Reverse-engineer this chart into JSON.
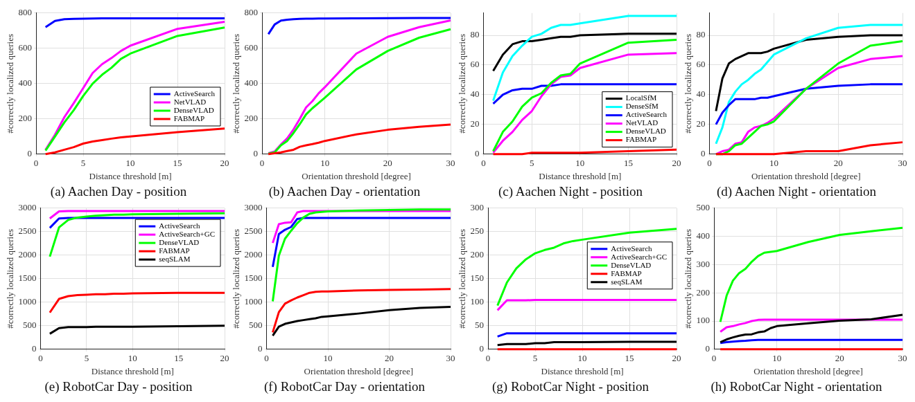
{
  "chart_data": [
    {
      "type": "line",
      "title": "(a) Aachen Day - position",
      "xlabel": "Distance threshold [m]",
      "ylabel": "#correctly localized queries",
      "x": [
        1,
        2,
        3,
        4,
        5,
        6,
        7,
        8,
        9,
        10,
        15,
        20
      ],
      "xlim": [
        0,
        20
      ],
      "xticks": [
        0,
        5,
        10,
        15,
        20
      ],
      "ylim": [
        0,
        800
      ],
      "yticks": [
        0,
        200,
        400,
        600,
        800
      ],
      "grid": true,
      "legend": "bottom right",
      "series": [
        {
          "name": "ActiveSearch",
          "color": "#0000ff",
          "values": [
            720,
            755,
            765,
            767,
            768,
            769,
            770,
            770,
            770,
            770,
            770,
            770
          ]
        },
        {
          "name": "NetVLAD",
          "color": "#ff00ff",
          "values": [
            25,
            110,
            210,
            290,
            375,
            460,
            510,
            545,
            585,
            615,
            710,
            750
          ]
        },
        {
          "name": "DenseVLAD",
          "color": "#00ff00",
          "values": [
            20,
            100,
            180,
            250,
            330,
            400,
            450,
            490,
            540,
            570,
            670,
            718
          ]
        },
        {
          "name": "FABMAP",
          "color": "#ff0000",
          "values": [
            0,
            10,
            25,
            40,
            60,
            72,
            80,
            88,
            95,
            100,
            125,
            145
          ]
        }
      ]
    },
    {
      "type": "line",
      "title": "(b) Aachen Day - orientation",
      "xlabel": "Orientation threshold [degree]",
      "ylabel": "#correctly localized queries",
      "x": [
        1,
        2,
        3,
        4,
        5,
        6,
        7,
        8,
        9,
        10,
        15,
        20,
        25,
        30
      ],
      "xlim": [
        0,
        30
      ],
      "xticks": [
        0,
        10,
        20,
        30
      ],
      "ylim": [
        0,
        800
      ],
      "yticks": [
        0,
        200,
        400,
        600,
        800
      ],
      "grid": true,
      "series": [
        {
          "color": "#0000ff",
          "values": [
            680,
            735,
            757,
            762,
            765,
            767,
            768,
            768,
            769,
            769,
            770,
            771,
            772,
            772
          ]
        },
        {
          "color": "#ff00ff",
          "values": [
            5,
            15,
            55,
            90,
            140,
            200,
            265,
            300,
            345,
            380,
            570,
            665,
            720,
            758
          ]
        },
        {
          "color": "#00ff00",
          "values": [
            3,
            10,
            50,
            75,
            120,
            170,
            225,
            260,
            290,
            320,
            480,
            585,
            660,
            708
          ]
        },
        {
          "color": "#ff0000",
          "values": [
            0,
            5,
            10,
            18,
            25,
            42,
            50,
            57,
            65,
            75,
            112,
            138,
            155,
            168
          ]
        }
      ]
    },
    {
      "type": "line",
      "title": "(c) Aachen Night - position",
      "xlabel": "Distance threshold [m]",
      "ylabel": "#correctly localized queries",
      "x": [
        1,
        2,
        3,
        4,
        5,
        6,
        7,
        8,
        9,
        10,
        15,
        20
      ],
      "xlim": [
        0,
        20
      ],
      "xticks": [
        0,
        5,
        10,
        15,
        20
      ],
      "ylim": [
        0,
        95
      ],
      "yticks": [
        0,
        20,
        40,
        60,
        80
      ],
      "grid": true,
      "legend": "bottom right",
      "series": [
        {
          "name": "LocalSfM",
          "color": "#000000",
          "values": [
            56,
            67,
            74,
            76,
            76,
            77,
            78,
            79,
            79,
            80,
            81,
            81
          ]
        },
        {
          "name": "DenseSfM",
          "color": "#00ffff",
          "values": [
            36,
            55,
            66,
            73,
            79,
            81,
            85,
            87,
            87,
            88,
            93,
            93
          ]
        },
        {
          "name": "ActiveSearch",
          "color": "#0000ff",
          "values": [
            34,
            40,
            43,
            44,
            44,
            46,
            46,
            47,
            47,
            47,
            47,
            47
          ]
        },
        {
          "name": "NetVLAD",
          "color": "#ff00ff",
          "values": [
            1,
            9,
            15,
            23,
            29,
            39,
            47,
            52,
            53,
            58,
            67,
            68
          ]
        },
        {
          "name": "DenseVLAD",
          "color": "#00ff00",
          "values": [
            2,
            15,
            22,
            32,
            38,
            41,
            48,
            53,
            54,
            61,
            75,
            77
          ]
        },
        {
          "name": "FABMAP",
          "color": "#ff0000",
          "values": [
            0,
            0,
            0,
            0,
            1,
            1,
            1,
            1,
            1,
            1,
            2,
            3
          ]
        }
      ]
    },
    {
      "type": "line",
      "title": "(d) Aachen Night - orientation",
      "xlabel": "Orientation threshold [degree]",
      "ylabel": "#correctly localized queries",
      "x": [
        1,
        2,
        3,
        4,
        5,
        6,
        7,
        8,
        9,
        10,
        15,
        20,
        25,
        30
      ],
      "xlim": [
        0,
        30
      ],
      "xticks": [
        0,
        10,
        20,
        30
      ],
      "ylim": [
        0,
        95
      ],
      "yticks": [
        0,
        20,
        40,
        60,
        80
      ],
      "grid": true,
      "series": [
        {
          "color": "#000000",
          "values": [
            29,
            51,
            61,
            64,
            66,
            68,
            68,
            68,
            69,
            71,
            77,
            79,
            80,
            80
          ]
        },
        {
          "color": "#00ffff",
          "values": [
            7,
            18,
            35,
            42,
            47,
            50,
            54,
            57,
            62,
            67,
            78,
            85,
            87,
            87
          ]
        },
        {
          "color": "#0000ff",
          "values": [
            20,
            28,
            33,
            37,
            37,
            37,
            37,
            38,
            38,
            39,
            44,
            46,
            47,
            47
          ]
        },
        {
          "color": "#ff00ff",
          "values": [
            0,
            2,
            3,
            7,
            8,
            15,
            18,
            19,
            21,
            24,
            44,
            58,
            64,
            66
          ]
        },
        {
          "color": "#00ff00",
          "values": [
            0,
            0,
            2,
            6,
            7,
            11,
            15,
            19,
            20,
            22,
            44,
            61,
            73,
            76
          ]
        },
        {
          "color": "#ff0000",
          "values": [
            0,
            0,
            0,
            0,
            0,
            0,
            0,
            0,
            0,
            0,
            2,
            2,
            6,
            8
          ]
        }
      ]
    },
    {
      "type": "line",
      "title": "(e) RobotCar Day - position",
      "xlabel": "Distance threshold [m]",
      "ylabel": "#correctly localized queries",
      "x": [
        1,
        2,
        3,
        4,
        5,
        6,
        7,
        8,
        9,
        10,
        15,
        20
      ],
      "xlim": [
        0,
        20
      ],
      "xticks": [
        0,
        5,
        10,
        15,
        20
      ],
      "ylim": [
        0,
        3000
      ],
      "yticks": [
        0,
        500,
        1000,
        1500,
        2000,
        2500,
        3000
      ],
      "grid": true,
      "legend": "top right",
      "series": [
        {
          "name": "ActiveSearch",
          "color": "#0000ff",
          "values": [
            2580,
            2780,
            2790,
            2790,
            2790,
            2790,
            2790,
            2790,
            2790,
            2790,
            2790,
            2790
          ]
        },
        {
          "name": "ActiveSearch+GC",
          "color": "#ff00ff",
          "values": [
            2780,
            2930,
            2940,
            2940,
            2940,
            2940,
            2940,
            2940,
            2940,
            2940,
            2940,
            2940
          ]
        },
        {
          "name": "DenseVLAD",
          "color": "#00ff00",
          "values": [
            1970,
            2590,
            2750,
            2800,
            2820,
            2840,
            2850,
            2860,
            2860,
            2870,
            2880,
            2890
          ]
        },
        {
          "name": "FABMAP",
          "color": "#ff0000",
          "values": [
            780,
            1070,
            1130,
            1150,
            1160,
            1170,
            1170,
            1180,
            1180,
            1190,
            1200,
            1200
          ]
        },
        {
          "name": "seqSLAM",
          "color": "#000000",
          "values": [
            330,
            450,
            470,
            470,
            470,
            480,
            480,
            480,
            480,
            480,
            490,
            500
          ]
        }
      ]
    },
    {
      "type": "line",
      "title": "(f) RobotCar Day - orientation",
      "xlabel": "Orientation threshold [degree]",
      "ylabel": "#correctly localized queries",
      "x": [
        1,
        2,
        3,
        4,
        5,
        6,
        7,
        8,
        9,
        10,
        15,
        20,
        25,
        30
      ],
      "xlim": [
        0,
        30
      ],
      "xticks": [
        0,
        10,
        20,
        30
      ],
      "ylim": [
        0,
        3000
      ],
      "yticks": [
        0,
        500,
        1000,
        1500,
        2000,
        2500,
        3000
      ],
      "grid": true,
      "series": [
        {
          "color": "#0000ff",
          "values": [
            1750,
            2450,
            2540,
            2600,
            2770,
            2790,
            2790,
            2790,
            2790,
            2790,
            2790,
            2790,
            2790,
            2790
          ]
        },
        {
          "color": "#ff00ff",
          "values": [
            2260,
            2660,
            2690,
            2700,
            2910,
            2940,
            2940,
            2940,
            2940,
            2940,
            2940,
            2940,
            2940,
            2940
          ]
        },
        {
          "color": "#00ff00",
          "values": [
            1020,
            1990,
            2350,
            2520,
            2680,
            2800,
            2880,
            2910,
            2920,
            2930,
            2950,
            2960,
            2970,
            2970
          ]
        },
        {
          "color": "#ff0000",
          "values": [
            360,
            790,
            970,
            1040,
            1100,
            1150,
            1200,
            1220,
            1230,
            1230,
            1250,
            1260,
            1270,
            1280
          ]
        },
        {
          "color": "#000000",
          "values": [
            290,
            480,
            540,
            570,
            600,
            620,
            640,
            660,
            690,
            700,
            760,
            830,
            880,
            900
          ]
        }
      ]
    },
    {
      "type": "line",
      "title": "(g) RobotCar Night - position",
      "xlabel": "Distance threshold [m]",
      "ylabel": "#correctly localized queries",
      "x": [
        1,
        2,
        3,
        4,
        5,
        6,
        7,
        8,
        9,
        10,
        15,
        20
      ],
      "xlim": [
        0,
        20
      ],
      "xticks": [
        0,
        5,
        10,
        15,
        20
      ],
      "ylim": [
        0,
        300
      ],
      "yticks": [
        0,
        50,
        100,
        150,
        200,
        250,
        300
      ],
      "grid": true,
      "legend": "top right",
      "series": [
        {
          "name": "ActiveSearch",
          "color": "#0000ff",
          "values": [
            27,
            34,
            34,
            34,
            34,
            34,
            34,
            34,
            34,
            34,
            34,
            34
          ]
        },
        {
          "name": "ActiveSearch+GC",
          "color": "#ff00ff",
          "values": [
            83,
            104,
            104,
            104,
            105,
            105,
            105,
            105,
            105,
            105,
            105,
            105
          ]
        },
        {
          "name": "DenseVLAD",
          "color": "#00ff00",
          "values": [
            93,
            142,
            172,
            191,
            204,
            211,
            216,
            225,
            230,
            233,
            248,
            256
          ]
        },
        {
          "name": "FABMAP",
          "color": "#ff0000",
          "values": [
            0,
            0,
            0,
            0,
            0,
            0,
            0,
            0,
            0,
            0,
            0,
            0
          ]
        },
        {
          "name": "seqSLAM",
          "color": "#000000",
          "values": [
            9,
            11,
            11,
            11,
            13,
            13,
            15,
            15,
            15,
            15,
            16,
            16
          ]
        }
      ]
    },
    {
      "type": "line",
      "title": "(h) RobotCar Night - orientation",
      "xlabel": "Orientation threshold [degree]",
      "ylabel": "#correctly localized queries",
      "x": [
        1,
        2,
        3,
        4,
        5,
        6,
        7,
        8,
        9,
        10,
        15,
        20,
        25,
        30
      ],
      "xlim": [
        0,
        30
      ],
      "xticks": [
        0,
        10,
        20,
        30
      ],
      "ylim": [
        0,
        500
      ],
      "yticks": [
        0,
        100,
        200,
        300,
        400,
        500
      ],
      "grid": true,
      "series": [
        {
          "color": "#0000ff",
          "values": [
            22,
            25,
            27,
            29,
            30,
            32,
            33,
            33,
            33,
            33,
            33,
            33,
            33,
            33
          ]
        },
        {
          "color": "#ff00ff",
          "values": [
            62,
            78,
            82,
            88,
            93,
            100,
            104,
            105,
            105,
            105,
            105,
            105,
            105,
            105
          ]
        },
        {
          "color": "#00ff00",
          "values": [
            97,
            190,
            243,
            270,
            285,
            310,
            330,
            342,
            345,
            348,
            380,
            405,
            418,
            430
          ]
        },
        {
          "color": "#ff0000",
          "values": [
            0,
            0,
            0,
            0,
            0,
            0,
            0,
            0,
            0,
            0,
            0,
            0,
            0,
            0
          ]
        },
        {
          "color": "#000000",
          "values": [
            25,
            35,
            42,
            48,
            52,
            53,
            60,
            63,
            75,
            82,
            92,
            101,
            106,
            122
          ]
        }
      ]
    }
  ]
}
